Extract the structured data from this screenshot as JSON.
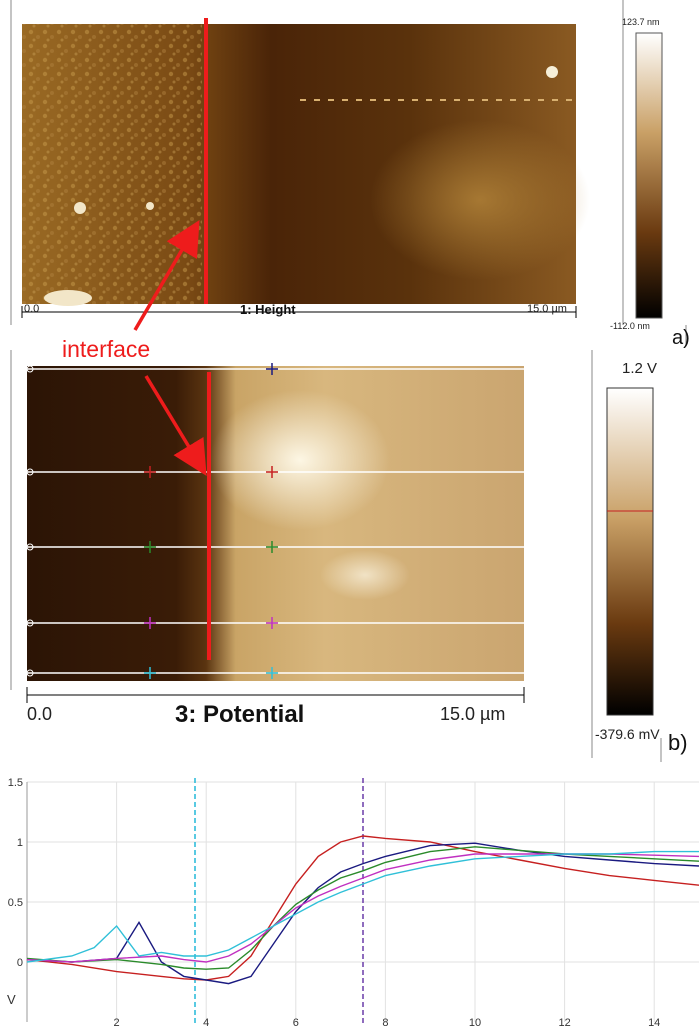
{
  "panel_a": {
    "title": "1: Height",
    "x_start": "0.0",
    "x_end": "15.0 µm",
    "scale_max": "123.7 nm",
    "scale_min": "-112.0 nm",
    "label": "a)",
    "colors": {
      "dark": "#2a1303",
      "mid": "#7a4a14",
      "light": "#b98a3a",
      "highlight": "#f2e6c8"
    }
  },
  "annotation": {
    "text": "interface",
    "color": "#ee1c1c"
  },
  "panel_b": {
    "title": "3: Potential",
    "x_start": "0.0",
    "x_end": "15.0 µm",
    "scale_max": "1.2 V",
    "scale_min": "-379.6 mV",
    "label": "b)",
    "colors": {
      "dark": "#2b1405",
      "mid": "#8a5a22",
      "light": "#d8b77e",
      "bright": "#fbf3df"
    }
  },
  "chart_data": {
    "type": "line",
    "title": "",
    "xlabel": "",
    "ylabel": "V",
    "xlim": [
      0,
      15
    ],
    "ylim": [
      -0.5,
      1.5
    ],
    "x_ticks": [
      2,
      4,
      6,
      8,
      10,
      12,
      14
    ],
    "y_ticks": [
      1.5,
      1,
      0.5,
      0
    ],
    "grid": true,
    "vlines": [
      {
        "x": 3.75,
        "color": "#22b8d8"
      },
      {
        "x": 7.5,
        "color": "#6a3ba8"
      }
    ],
    "series": [
      {
        "color": "#c62020",
        "x": [
          0,
          1,
          2,
          3,
          3.5,
          4,
          4.5,
          5,
          5.5,
          6,
          6.5,
          7,
          7.5,
          8,
          9,
          10,
          11,
          12,
          13,
          14,
          15
        ],
        "y": [
          0.02,
          -0.02,
          -0.08,
          -0.12,
          -0.14,
          -0.15,
          -0.12,
          0.05,
          0.35,
          0.65,
          0.88,
          1.0,
          1.05,
          1.03,
          1.0,
          0.92,
          0.85,
          0.78,
          0.72,
          0.68,
          0.64
        ]
      },
      {
        "color": "#1a1a80",
        "x": [
          0,
          1,
          2,
          2.5,
          3,
          3.5,
          4,
          4.5,
          5,
          5.5,
          6,
          6.5,
          7,
          7.5,
          8,
          9,
          10,
          11,
          12,
          13,
          14,
          15
        ],
        "y": [
          0.02,
          0.0,
          0.03,
          0.33,
          0.0,
          -0.12,
          -0.15,
          -0.18,
          -0.12,
          0.15,
          0.42,
          0.62,
          0.75,
          0.82,
          0.88,
          0.97,
          0.99,
          0.93,
          0.88,
          0.85,
          0.82,
          0.8
        ]
      },
      {
        "color": "#2a8a2a",
        "x": [
          0,
          1,
          2,
          3,
          3.5,
          4,
          4.5,
          5,
          5.5,
          6,
          6.5,
          7,
          7.5,
          8,
          9,
          10,
          11,
          12,
          13,
          14,
          15
        ],
        "y": [
          0.03,
          0.0,
          0.02,
          -0.02,
          -0.05,
          -0.06,
          -0.05,
          0.1,
          0.3,
          0.48,
          0.6,
          0.7,
          0.76,
          0.83,
          0.92,
          0.96,
          0.93,
          0.9,
          0.88,
          0.86,
          0.84
        ]
      },
      {
        "color": "#c030c0",
        "x": [
          0,
          1,
          2,
          3,
          3.5,
          4,
          4.5,
          5,
          5.5,
          6,
          6.5,
          7,
          7.5,
          8,
          9,
          10,
          11,
          12,
          13,
          14,
          15
        ],
        "y": [
          0.02,
          0.0,
          0.03,
          0.05,
          0.02,
          0.0,
          0.05,
          0.15,
          0.3,
          0.45,
          0.55,
          0.63,
          0.7,
          0.77,
          0.85,
          0.9,
          0.9,
          0.9,
          0.9,
          0.89,
          0.88
        ]
      },
      {
        "color": "#30c0d8",
        "x": [
          0,
          1,
          1.5,
          2,
          2.5,
          3,
          3.5,
          4,
          4.5,
          5,
          5.5,
          6,
          6.5,
          7,
          7.5,
          8,
          9,
          10,
          11,
          12,
          13,
          14,
          15
        ],
        "y": [
          0.0,
          0.05,
          0.12,
          0.3,
          0.05,
          0.08,
          0.05,
          0.05,
          0.1,
          0.2,
          0.3,
          0.4,
          0.5,
          0.58,
          0.65,
          0.72,
          0.8,
          0.86,
          0.88,
          0.9,
          0.9,
          0.92,
          0.92
        ]
      }
    ]
  }
}
